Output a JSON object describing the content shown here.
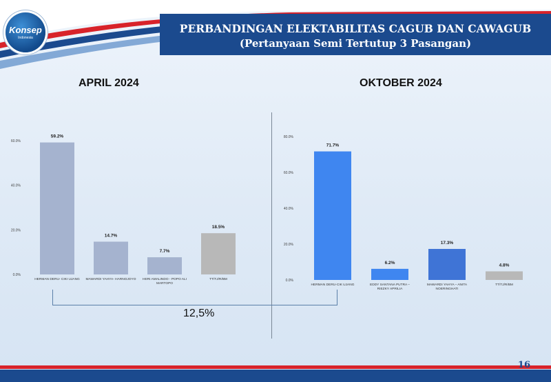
{
  "header": {
    "logo": {
      "name": "Konsep",
      "subtitle": "Indonesia"
    },
    "title_line1": "PERBANDINGAN ELEKTABILITAS CAGUB DAN CAWAGUB",
    "title_line2": "(Pertanyaan Semi Tertutup 3 Pasangan)"
  },
  "left_panel": {
    "title": "APRIL 2024"
  },
  "right_panel": {
    "title": "OKTOBER 2024"
  },
  "difference_label": "12,5%",
  "page_number": "16",
  "colors": {
    "navy": "#1b4a8e",
    "red": "#d8232a",
    "april_bar": "#a5b3cf",
    "april_other_bar": "#b8b8b8",
    "oct_bar_1": "#3f86f0",
    "oct_bar_2": "#3f86f0",
    "oct_bar_3": "#3f74d6",
    "oct_other_bar": "#b8b8b8"
  },
  "chart_data": [
    {
      "type": "bar",
      "title": "APRIL 2024",
      "categories": [
        "HERMAN DERU- CIKI UJANG",
        "MAWARDI YAHYA- HARNOJOYO",
        "HERI AMALINDO - POPO ALI MARTOPO",
        "TT/TJ/R/BM"
      ],
      "values": [
        59.2,
        14.7,
        7.7,
        18.5
      ],
      "value_labels": [
        "59.2%",
        "14.7%",
        "7.7%",
        "18.5%"
      ],
      "yticks": [
        "0.0%",
        "20.0%",
        "40.0%",
        "60.0%"
      ],
      "ylim": [
        0,
        60
      ],
      "grid": false
    },
    {
      "type": "bar",
      "title": "OKTOBER 2024",
      "categories": [
        "HERMAN DERU-CIK UJANG",
        "EDDY SANTANA PUTRA – RIEZKY APRILIA",
        "MAWARDI YAHYA – ANITA NOERINGHATI",
        "TT/TJ/R/BM"
      ],
      "values": [
        71.7,
        6.2,
        17.3,
        4.8
      ],
      "value_labels": [
        "71.7%",
        "6.2%",
        "17.3%",
        "4.8%"
      ],
      "yticks": [
        "0.0%",
        "20.0%",
        "40.0%",
        "60.0%",
        "80.0%"
      ],
      "ylim": [
        0,
        80
      ],
      "grid": false
    }
  ]
}
